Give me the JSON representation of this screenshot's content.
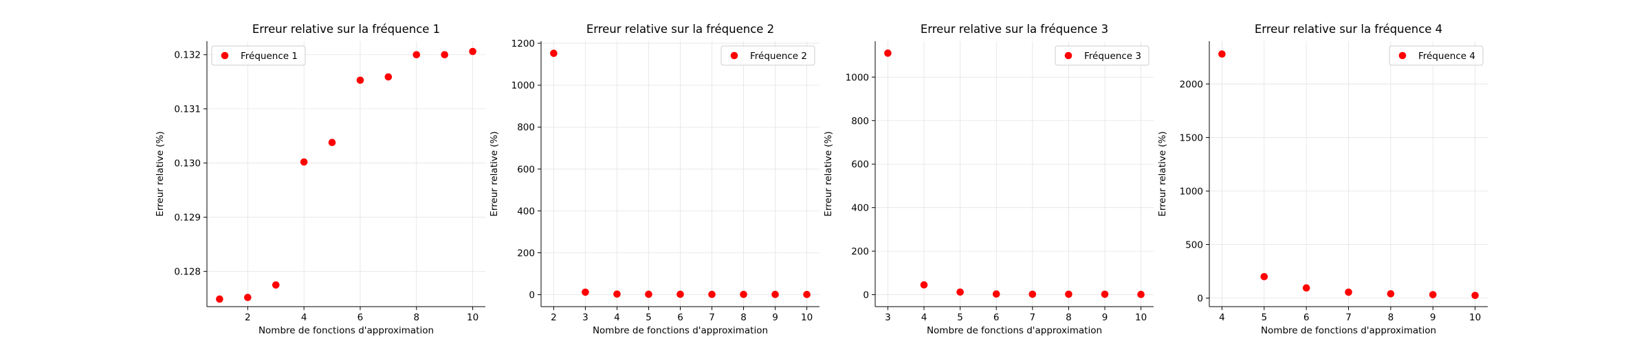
{
  "chart_data": [
    {
      "type": "scatter",
      "title": "Erreur relative sur la fréquence 1",
      "xlabel": "Nombre de fonctions d'approximation",
      "ylabel": "Erreur relative (%)",
      "legend_position": "top-left",
      "grid": true,
      "marker_color": "#ff0000",
      "xlim": [
        0.55,
        10.45
      ],
      "ylim": [
        0.12735,
        0.13225
      ],
      "xticks": [
        2,
        4,
        6,
        8,
        10
      ],
      "yticks": [
        0.128,
        0.129,
        0.13,
        0.131,
        0.132
      ],
      "ytick_labels": [
        "0.128",
        "0.129",
        "0.130",
        "0.131",
        "0.132"
      ],
      "series": [
        {
          "name": "Fréquence 1",
          "x": [
            1,
            2,
            3,
            4,
            5,
            6,
            7,
            8,
            9,
            10
          ],
          "y": [
            0.12749,
            0.12752,
            0.12775,
            0.13002,
            0.13038,
            0.13153,
            0.13159,
            0.132,
            0.132,
            0.13206
          ]
        }
      ]
    },
    {
      "type": "scatter",
      "title": "Erreur relative sur la fréquence 2",
      "xlabel": "Nombre de fonctions d'approximation",
      "ylabel": "Erreur relative (%)",
      "legend_position": "top-right",
      "grid": true,
      "marker_color": "#ff0000",
      "xlim": [
        1.6,
        10.4
      ],
      "ylim": [
        -57,
        1210
      ],
      "xticks": [
        2,
        3,
        4,
        5,
        6,
        7,
        8,
        9,
        10
      ],
      "yticks": [
        0,
        200,
        400,
        600,
        800,
        1000,
        1200
      ],
      "ytick_labels": [
        "0",
        "200",
        "400",
        "600",
        "800",
        "1000",
        "1200"
      ],
      "series": [
        {
          "name": "Fréquence 2",
          "x": [
            2,
            3,
            4,
            5,
            6,
            7,
            8,
            9,
            10
          ],
          "y": [
            1152,
            12,
            3,
            2,
            2,
            1.5,
            1.5,
            1.2,
            1
          ]
        }
      ]
    },
    {
      "type": "scatter",
      "title": "Erreur relative sur la fréquence 3",
      "xlabel": "Nombre de fonctions d'approximation",
      "ylabel": "Erreur relative (%)",
      "legend_position": "top-right",
      "grid": true,
      "marker_color": "#ff0000",
      "xlim": [
        2.65,
        10.35
      ],
      "ylim": [
        -55,
        1165
      ],
      "xticks": [
        3,
        4,
        5,
        6,
        7,
        8,
        9,
        10
      ],
      "yticks": [
        0,
        200,
        400,
        600,
        800,
        1000
      ],
      "ytick_labels": [
        "0",
        "200",
        "400",
        "600",
        "800",
        "1000"
      ],
      "series": [
        {
          "name": "Fréquence 3",
          "x": [
            3,
            4,
            5,
            6,
            7,
            8,
            9,
            10
          ],
          "y": [
            1110,
            45,
            12,
            3,
            2,
            2,
            2,
            1
          ]
        }
      ]
    },
    {
      "type": "scatter",
      "title": "Erreur relative sur la fréquence 4",
      "xlabel": "Nombre de fonctions d'approximation",
      "ylabel": "Erreur relative (%)",
      "legend_position": "top-right",
      "grid": true,
      "marker_color": "#ff0000",
      "xlim": [
        3.7,
        10.3
      ],
      "ylim": [
        -80,
        2400
      ],
      "xticks": [
        4,
        5,
        6,
        7,
        8,
        9,
        10
      ],
      "yticks": [
        0,
        500,
        1000,
        1500,
        2000
      ],
      "ytick_labels": [
        "0",
        "500",
        "1000",
        "1500",
        "2000"
      ],
      "series": [
        {
          "name": "Fréquence 4",
          "x": [
            4,
            5,
            6,
            7,
            8,
            9,
            10
          ],
          "y": [
            2280,
            200,
            95,
            55,
            40,
            32,
            25
          ]
        }
      ]
    }
  ]
}
